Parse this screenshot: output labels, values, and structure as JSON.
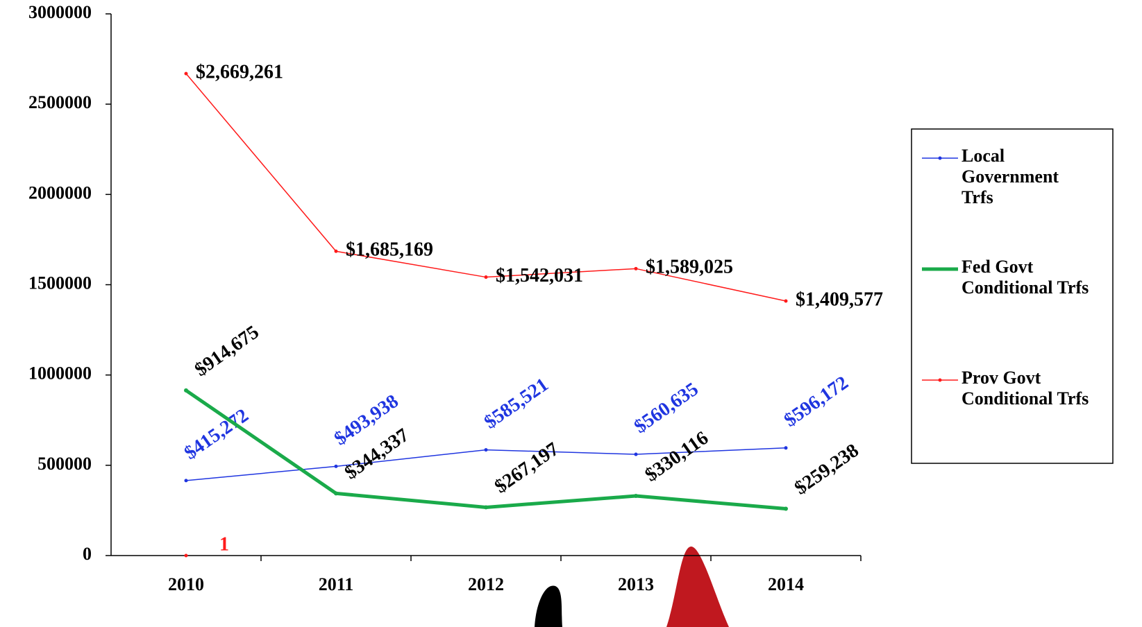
{
  "chart_data": {
    "type": "line",
    "categories": [
      "2010",
      "2011",
      "2012",
      "2013",
      "2014"
    ],
    "ylim": [
      0,
      3000000
    ],
    "yticks": [
      0,
      500000,
      1000000,
      1500000,
      2000000,
      2500000,
      3000000
    ],
    "series": [
      {
        "name": "Local Government Trfs",
        "color": "#1f35e0",
        "values": [
          415272,
          493938,
          585521,
          560635,
          596172
        ],
        "value_labels": [
          "$415,272",
          "$493,938",
          "$585,521",
          "$560,635",
          "$596,172"
        ]
      },
      {
        "name": "Fed Govt Conditional Trfs",
        "color": "#1aaa4a",
        "values": [
          914675,
          344337,
          267197,
          330116,
          259238
        ],
        "value_labels": [
          "$914,675",
          "$344,337",
          "$267,197",
          "$330,116",
          "$259,238"
        ]
      },
      {
        "name": "Prov Govt Conditional Trfs",
        "color": "#ff1a1a",
        "values": [
          2669261,
          1685169,
          1542031,
          1589025,
          1409577
        ],
        "value_labels": [
          "$2,669,261",
          "$1,685,169",
          "$1,542,031",
          "$1,589,025",
          "$1,409,577"
        ]
      },
      {
        "color": "#ff1a1a",
        "values": [
          1,
          null,
          null,
          null,
          null
        ]
      }
    ]
  }
}
